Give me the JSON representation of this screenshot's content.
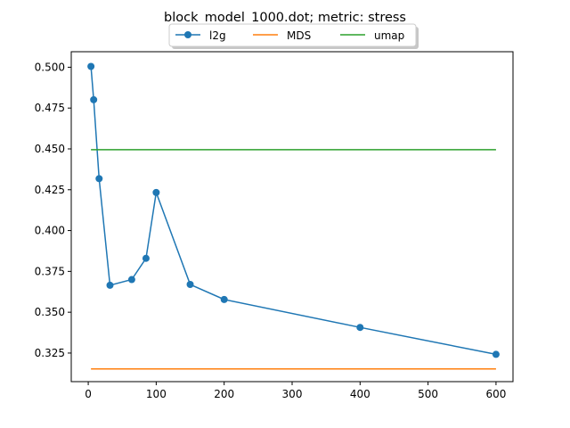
{
  "chart_data": {
    "type": "line",
    "title": "block_model_1000.dot; metric: stress",
    "xlabel": "",
    "ylabel": "",
    "xlim": [
      -25,
      625
    ],
    "ylim": [
      0.3075,
      0.5095
    ],
    "xticks": [
      0,
      100,
      200,
      300,
      400,
      500,
      600
    ],
    "xtick_labels": [
      "0",
      "100",
      "200",
      "300",
      "400",
      "500",
      "600"
    ],
    "yticks": [
      0.325,
      0.35,
      0.375,
      0.4,
      0.425,
      0.45,
      0.475,
      0.5
    ],
    "ytick_labels": [
      "0.325",
      "0.350",
      "0.375",
      "0.400",
      "0.425",
      "0.450",
      "0.475",
      "0.500"
    ],
    "grid": false,
    "legend_position": "top-center",
    "series": [
      {
        "name": "l2g",
        "color": "#1f77b4",
        "marker": "circle",
        "x": [
          4,
          8,
          16,
          32,
          64,
          85,
          100,
          150,
          200,
          400,
          600
        ],
        "y": [
          0.5005,
          0.4801,
          0.4318,
          0.3665,
          0.37,
          0.383,
          0.4233,
          0.367,
          0.3578,
          0.3407,
          0.3242
        ]
      },
      {
        "name": "MDS",
        "color": "#ff7f0e",
        "marker": "none",
        "x": [
          4,
          600
        ],
        "y": [
          0.3153,
          0.3153
        ]
      },
      {
        "name": "umap",
        "color": "#2ca02c",
        "marker": "none",
        "x": [
          4,
          600
        ],
        "y": [
          0.4495,
          0.4495
        ]
      }
    ]
  }
}
